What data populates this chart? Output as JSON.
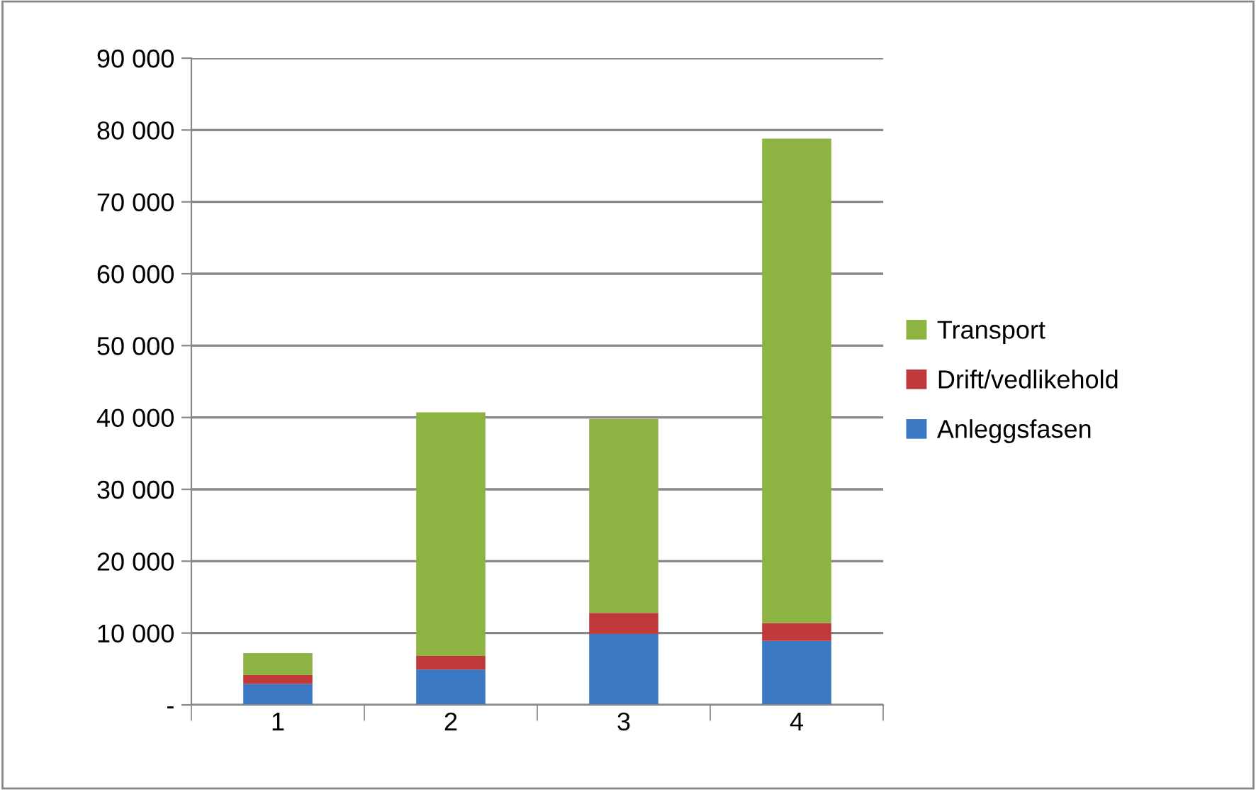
{
  "chart_data": {
    "type": "bar",
    "stacked": true,
    "categories": [
      "1",
      "2",
      "3",
      "4"
    ],
    "series": [
      {
        "name": "Anleggsfasen",
        "color": "#3a78c3",
        "values": [
          2900,
          4900,
          9900,
          8900
        ]
      },
      {
        "name": "Drift/vedlikehold",
        "color": "#c0393b",
        "values": [
          1300,
          1900,
          2900,
          2500
        ]
      },
      {
        "name": "Transport",
        "color": "#8db443",
        "values": [
          3000,
          33900,
          27000,
          67400
        ]
      }
    ],
    "ylim": [
      0,
      90000
    ],
    "yticks": [
      {
        "value": 0,
        "label": "-"
      },
      {
        "value": 10000,
        "label": "10 000"
      },
      {
        "value": 20000,
        "label": "20 000"
      },
      {
        "value": 30000,
        "label": "30 000"
      },
      {
        "value": 40000,
        "label": "40 000"
      },
      {
        "value": 50000,
        "label": "50 000"
      },
      {
        "value": 60000,
        "label": "60 000"
      },
      {
        "value": 70000,
        "label": "70 000"
      },
      {
        "value": 80000,
        "label": "80 000"
      },
      {
        "value": 90000,
        "label": "90 000"
      }
    ],
    "grid": "y",
    "legend": "right"
  }
}
